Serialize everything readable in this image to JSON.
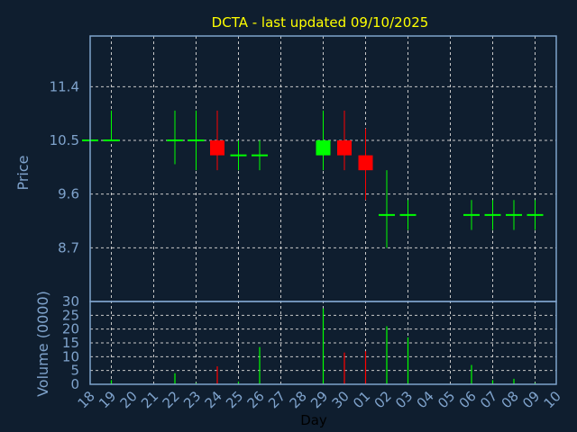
{
  "chart_data": {
    "type": "candlestick",
    "title": "DCTA - last updated 09/10/2025",
    "xlabel": "Day",
    "ylabel_price": "Price",
    "ylabel_volume": "Volume (0000)",
    "x_ticks": [
      "18",
      "19",
      "20",
      "21",
      "22",
      "23",
      "24",
      "25",
      "26",
      "27",
      "28",
      "29",
      "30",
      "01",
      "02",
      "03",
      "04",
      "05",
      "06",
      "07",
      "08",
      "09",
      "10"
    ],
    "price_ticks": [
      "8.7",
      "9.6",
      "10.5",
      "11.4"
    ],
    "price_ylim": [
      7.8,
      12.25
    ],
    "volume_ticks": [
      "0",
      "5",
      "10",
      "15",
      "20",
      "25",
      "30"
    ],
    "volume_ylim": [
      0,
      30
    ],
    "grid": true,
    "colors": {
      "up": "#00ff00",
      "down": "#ff0000",
      "background": "#0f1e2f",
      "axis": "#7fa3cc",
      "title": "#ffff00"
    },
    "candles": [
      {
        "day": "18",
        "open": 10.5,
        "high": 10.5,
        "low": 10.5,
        "close": 10.5,
        "volume": 0
      },
      {
        "day": "19",
        "open": 10.5,
        "high": 11.0,
        "low": 10.5,
        "close": 10.5,
        "volume": 1.5
      },
      {
        "day": "22",
        "open": 10.5,
        "high": 11.0,
        "low": 10.1,
        "close": 10.5,
        "volume": 4
      },
      {
        "day": "23",
        "open": 10.5,
        "high": 11.0,
        "low": 10.0,
        "close": 10.5,
        "volume": 0.5
      },
      {
        "day": "24",
        "open": 10.5,
        "high": 11.0,
        "low": 10.0,
        "close": 10.25,
        "volume": 6.5
      },
      {
        "day": "25",
        "open": 10.25,
        "high": 10.5,
        "low": 10.0,
        "close": 10.25,
        "volume": 1
      },
      {
        "day": "26",
        "open": 10.25,
        "high": 10.5,
        "low": 10.0,
        "close": 10.25,
        "volume": 13.5
      },
      {
        "day": "29",
        "open": 10.25,
        "high": 11.0,
        "low": 10.0,
        "close": 10.5,
        "volume": 27.5
      },
      {
        "day": "30",
        "open": 10.5,
        "high": 11.0,
        "low": 10.0,
        "close": 10.25,
        "volume": 11.5
      },
      {
        "day": "01",
        "open": 10.25,
        "high": 10.7,
        "low": 9.5,
        "close": 10.0,
        "volume": 12
      },
      {
        "day": "02",
        "open": 9.25,
        "high": 10.0,
        "low": 8.7,
        "close": 9.25,
        "volume": 21
      },
      {
        "day": "03",
        "open": 9.25,
        "high": 9.5,
        "low": 9.0,
        "close": 9.25,
        "volume": 17
      },
      {
        "day": "06",
        "open": 9.25,
        "high": 9.5,
        "low": 9.0,
        "close": 9.25,
        "volume": 7
      },
      {
        "day": "07",
        "open": 9.25,
        "high": 9.5,
        "low": 9.0,
        "close": 9.25,
        "volume": 1.5
      },
      {
        "day": "08",
        "open": 9.25,
        "high": 9.5,
        "low": 9.0,
        "close": 9.25,
        "volume": 2
      },
      {
        "day": "09",
        "open": 9.25,
        "high": 9.5,
        "low": 9.0,
        "close": 9.25,
        "volume": 0.5
      }
    ]
  }
}
